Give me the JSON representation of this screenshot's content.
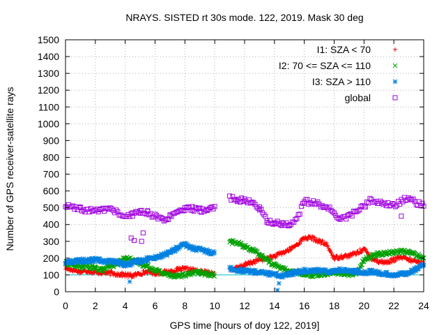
{
  "chart_data": {
    "type": "scatter",
    "title": "NRAYS. SISTED rt 30s mode. 122, 2019. Mask 30 deg",
    "xlabel": "GPS time [hours of doy 122, 2019]",
    "ylabel": "Number of GPS receiver-satellite rays",
    "xlim": [
      0,
      24
    ],
    "ylim": [
      0,
      1500
    ],
    "xticks": [
      "0",
      "2",
      "4",
      "6",
      "8",
      "10",
      "12",
      "14",
      "16",
      "18",
      "20",
      "22",
      "24"
    ],
    "yticks": [
      "0",
      "100",
      "200",
      "300",
      "400",
      "500",
      "600",
      "700",
      "800",
      "900",
      "1000",
      "1100",
      "1200",
      "1300",
      "1400",
      "1500"
    ],
    "grid": true,
    "legend_position": "top-right",
    "reference_line": {
      "y": 100,
      "color": "#00c0c0"
    },
    "series": [
      {
        "name": "I1: SZA < 70",
        "marker": "plus",
        "color": "#ff0000",
        "x": [
          0,
          0.5,
          1,
          1.5,
          2,
          2.5,
          3,
          3.5,
          4,
          4.5,
          5,
          5.5,
          6,
          6.5,
          7,
          7.5,
          8,
          8.5,
          9,
          9.5,
          10,
          11,
          11.5,
          12,
          12.5,
          13,
          13.5,
          14,
          14.5,
          15,
          15.5,
          16,
          16.5,
          17,
          17.5,
          18,
          18.5,
          19,
          19.5,
          20,
          20.5,
          21,
          21.5,
          22,
          22.5,
          23,
          23.5,
          24
        ],
        "y": [
          140,
          130,
          120,
          125,
          115,
          115,
          110,
          105,
          100,
          95,
          110,
          120,
          110,
          115,
          120,
          130,
          135,
          130,
          120,
          115,
          110,
          130,
          140,
          160,
          175,
          190,
          200,
          210,
          230,
          250,
          280,
          320,
          320,
          300,
          280,
          200,
          210,
          215,
          230,
          255,
          200,
          180,
          175,
          190,
          205,
          190,
          180,
          170
        ]
      },
      {
        "name": "I2: 70 <= SZA <= 110",
        "marker": "cross",
        "color": "#00a000",
        "x": [
          0,
          0.5,
          1,
          1.5,
          2,
          2.5,
          3,
          3.5,
          4,
          4.5,
          5,
          5.5,
          6,
          6.5,
          7,
          7.5,
          8,
          8.5,
          9,
          9.5,
          10,
          11,
          11.5,
          12,
          12.5,
          13,
          13.5,
          14,
          14.5,
          15,
          15.5,
          16,
          16.5,
          17,
          17.5,
          18,
          18.5,
          19,
          19.5,
          20,
          20.5,
          21,
          21.5,
          22,
          22.5,
          23,
          23.5,
          24
        ],
        "y": [
          170,
          160,
          150,
          150,
          140,
          130,
          150,
          170,
          200,
          190,
          170,
          150,
          130,
          110,
          100,
          95,
          100,
          110,
          115,
          105,
          100,
          300,
          290,
          270,
          250,
          220,
          190,
          160,
          140,
          120,
          115,
          110,
          100,
          105,
          110,
          115,
          110,
          105,
          110,
          190,
          210,
          225,
          230,
          235,
          240,
          235,
          220,
          200
        ]
      },
      {
        "name": "I3: SZA > 110",
        "marker": "star",
        "color": "#0080e0",
        "x": [
          0,
          0.5,
          1,
          1.5,
          2,
          2.5,
          3,
          3.5,
          4,
          4.5,
          5,
          5.5,
          6,
          6.5,
          7,
          7.5,
          8,
          8.5,
          9,
          9.5,
          10,
          11,
          11.5,
          12,
          12.5,
          13,
          13.5,
          14,
          14.5,
          15,
          15.5,
          16,
          16.5,
          17,
          17.5,
          18,
          18.5,
          19,
          19.5,
          20,
          20.5,
          21,
          21.5,
          22,
          22.5,
          23,
          23.5,
          24
        ],
        "y": [
          175,
          180,
          185,
          185,
          190,
          185,
          180,
          175,
          160,
          170,
          185,
          195,
          205,
          215,
          235,
          260,
          280,
          260,
          250,
          240,
          230,
          140,
          130,
          125,
          120,
          115,
          110,
          100,
          95,
          105,
          115,
          125,
          130,
          125,
          120,
          125,
          130,
          125,
          120,
          115,
          120,
          110,
          105,
          100,
          105,
          115,
          135,
          160
        ]
      },
      {
        "name": "global",
        "marker": "square",
        "color": "#a000e0",
        "x": [
          0,
          0.5,
          1,
          1.5,
          2,
          2.5,
          3,
          3.5,
          4,
          4.5,
          5,
          5.5,
          6,
          6.5,
          7,
          7.5,
          8,
          8.5,
          9,
          9.5,
          10,
          11,
          11.5,
          12,
          12.5,
          13,
          13.5,
          14,
          14.5,
          15,
          15.5,
          16,
          16.5,
          17,
          17.5,
          18,
          18.5,
          19,
          19.5,
          20,
          20.5,
          21,
          21.5,
          22,
          22.5,
          23,
          23.5,
          24
        ],
        "y": [
          510,
          500,
          490,
          485,
          480,
          490,
          495,
          470,
          440,
          460,
          480,
          470,
          450,
          430,
          445,
          470,
          490,
          495,
          485,
          490,
          500,
          560,
          550,
          540,
          530,
          500,
          420,
          410,
          405,
          400,
          430,
          540,
          530,
          520,
          510,
          460,
          440,
          450,
          480,
          510,
          550,
          530,
          520,
          510,
          540,
          560,
          530,
          510
        ]
      }
    ],
    "outliers": [
      {
        "series": "global",
        "x": 4.4,
        "y": 320
      },
      {
        "series": "global",
        "x": 4.6,
        "y": 305
      },
      {
        "series": "global",
        "x": 5.1,
        "y": 300
      },
      {
        "series": "global",
        "x": 5.2,
        "y": 350
      },
      {
        "series": "global",
        "x": 22.5,
        "y": 450
      },
      {
        "series": "I3: SZA > 110",
        "x": 4.3,
        "y": 60
      },
      {
        "series": "I3: SZA > 110",
        "x": 14.2,
        "y": 10
      },
      {
        "series": "I3: SZA > 110",
        "x": 14.3,
        "y": 50
      }
    ]
  }
}
